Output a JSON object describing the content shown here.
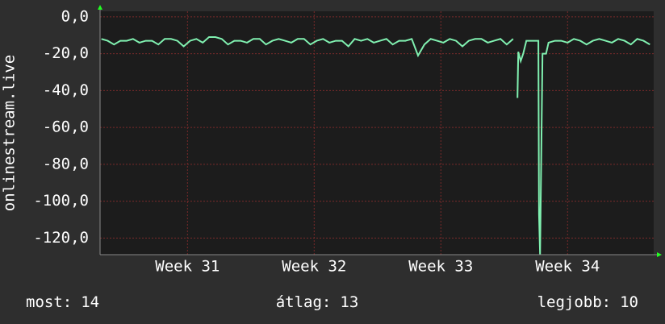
{
  "chart_data": {
    "type": "line",
    "ylabel": "onlinestream.live",
    "xlim": [
      30.31,
      34.68
    ],
    "xticks": [
      {
        "value": 31,
        "label": "Week 31"
      },
      {
        "value": 32,
        "label": "Week 32"
      },
      {
        "value": 33,
        "label": "Week 33"
      },
      {
        "value": 34,
        "label": "Week 34"
      }
    ],
    "ylim": [
      -129,
      3
    ],
    "yticks": [
      {
        "value": 0,
        "label": "0,0"
      },
      {
        "value": -20,
        "label": "-20,0"
      },
      {
        "value": -40,
        "label": "-40,0"
      },
      {
        "value": -60,
        "label": "-60,0"
      },
      {
        "value": -80,
        "label": "-80,0"
      },
      {
        "value": -100,
        "label": "-100,0"
      },
      {
        "value": -120,
        "label": "-120,0"
      }
    ],
    "grid": true,
    "x": [
      30.32,
      30.37,
      30.42,
      30.47,
      30.52,
      30.57,
      30.62,
      30.67,
      30.72,
      30.77,
      30.82,
      30.87,
      30.92,
      30.97,
      31.02,
      31.07,
      31.12,
      31.17,
      31.22,
      31.27,
      31.32,
      31.37,
      31.42,
      31.47,
      31.52,
      31.57,
      31.62,
      31.67,
      31.72,
      31.77,
      31.82,
      31.87,
      31.92,
      31.97,
      32.02,
      32.07,
      32.12,
      32.17,
      32.22,
      32.27,
      32.32,
      32.37,
      32.42,
      32.47,
      32.52,
      32.57,
      32.62,
      32.67,
      32.72,
      32.77,
      32.82,
      32.87,
      32.92,
      32.97,
      33.02,
      33.07,
      33.12,
      33.17,
      33.22,
      33.27,
      33.32,
      33.37,
      33.42,
      33.47,
      33.52,
      33.57,
      33.59,
      33.605,
      33.611,
      33.63,
      33.65,
      33.675,
      33.7,
      33.74,
      33.77,
      33.775,
      33.783,
      33.802,
      33.83,
      33.85,
      33.9,
      33.95,
      34.0,
      34.05,
      34.1,
      34.15,
      34.2,
      34.25,
      34.3,
      34.35,
      34.4,
      34.45,
      34.5,
      34.55,
      34.6,
      34.65
    ],
    "series": [
      {
        "name": "onlinestream.live",
        "color": "#80f0b0",
        "values": [
          -12,
          -13,
          -15,
          -13,
          -13,
          -12,
          -14,
          -13,
          -13,
          -15,
          -12,
          -12,
          -13,
          -16,
          -13,
          -12,
          -14,
          -11,
          -11,
          -12,
          -15,
          -13,
          -13,
          -14,
          -12,
          -12,
          -15,
          -13,
          -12,
          -13,
          -14,
          -12,
          -12,
          -15,
          -13,
          -12,
          -14,
          -13,
          -13,
          -16,
          -12,
          -13,
          -12,
          -14,
          -13,
          -12,
          -15,
          -13,
          -13,
          -12,
          -21,
          -15,
          -12,
          -13,
          -14,
          -12,
          -13,
          -16,
          -13,
          -12,
          -12,
          -14,
          -13,
          -12,
          -15,
          -12,
          null,
          -44,
          -19,
          -24,
          -20,
          -13,
          -13,
          -13,
          -13,
          -107,
          -129,
          -20,
          -20,
          -14,
          -13,
          -13,
          -14,
          -12,
          -13,
          -15,
          -13,
          -12,
          -13,
          -14,
          -12,
          -13,
          -15,
          -12,
          -13,
          -15
        ]
      }
    ]
  },
  "stats": [
    {
      "label": "most:",
      "value": 14
    },
    {
      "label": "átlag:",
      "value": 13
    },
    {
      "label": "legjobb:",
      "value": 10
    }
  ]
}
